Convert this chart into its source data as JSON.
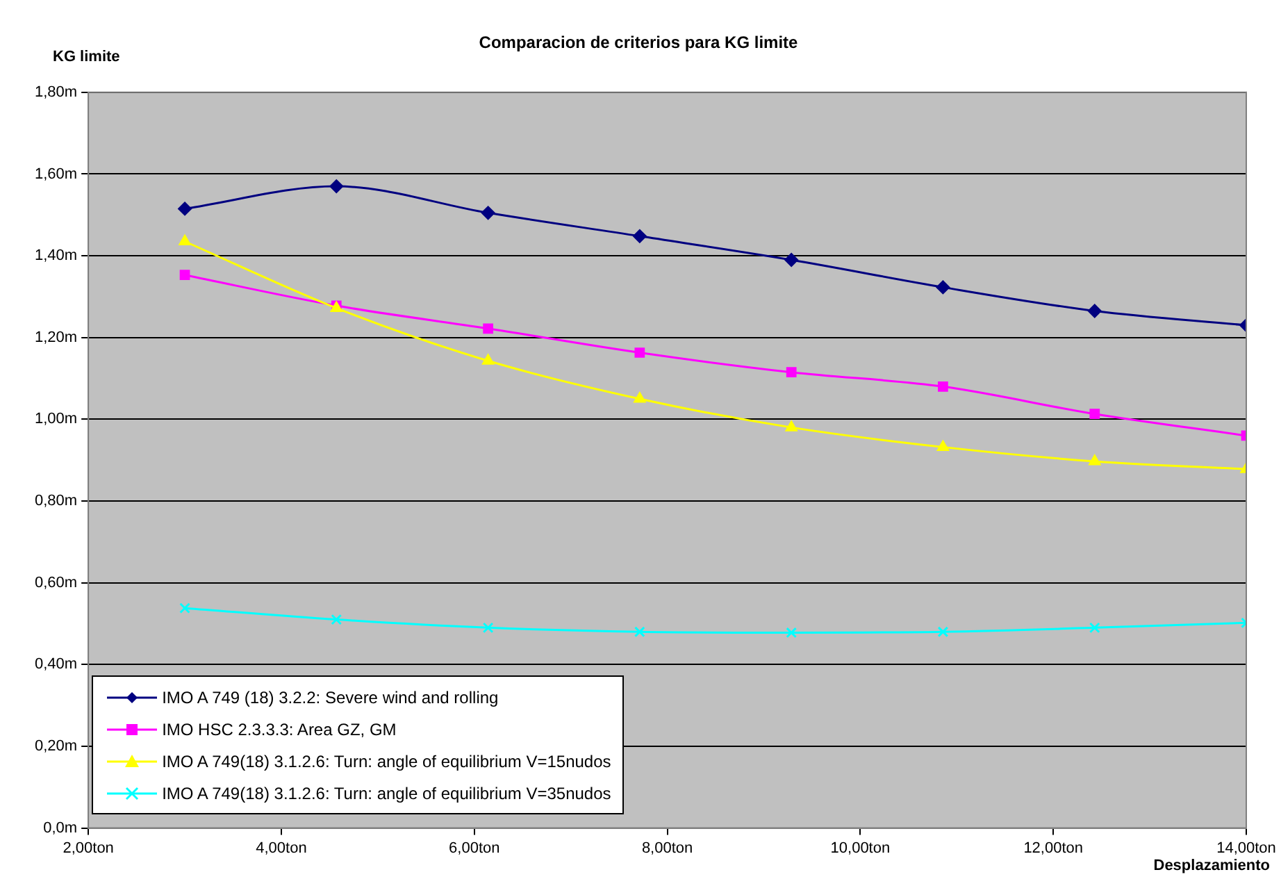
{
  "chart_data": {
    "type": "line",
    "title": "Comparacion de criterios para KG limite",
    "xlabel": "Desplazamiento",
    "ylabel": "KG limite",
    "x": [
      3.0,
      4.571,
      6.143,
      7.714,
      9.286,
      10.857,
      12.429,
      14.0
    ],
    "series": [
      {
        "name": "IMO A 749 (18) 3.2.2: Severe wind and rolling",
        "color": "#000080",
        "marker": "diamond",
        "values": [
          1.515,
          1.57,
          1.505,
          1.448,
          1.39,
          1.323,
          1.265,
          1.23
        ]
      },
      {
        "name": "IMO HSC 2.3.3.3: Area GZ, GM",
        "color": "#ff00ff",
        "marker": "square",
        "values": [
          1.353,
          1.278,
          1.222,
          1.163,
          1.115,
          1.08,
          1.013,
          0.96
        ]
      },
      {
        "name": "IMO A 749(18) 3.1.2.6: Turn: angle of equilibrium V=15nudos",
        "color": "#ffff00",
        "marker": "triangle",
        "values": [
          1.435,
          1.272,
          1.143,
          1.05,
          0.98,
          0.932,
          0.897,
          0.878
        ]
      },
      {
        "name": "IMO A 749(18) 3.1.2.6: Turn: angle of equilibrium V=35nudos",
        "color": "#00ffff",
        "marker": "cross",
        "values": [
          0.538,
          0.51,
          0.49,
          0.48,
          0.478,
          0.48,
          0.49,
          0.502
        ]
      }
    ],
    "xlim": [
      2,
      14
    ],
    "xticks": [
      {
        "value": 2,
        "label": "2,00ton"
      },
      {
        "value": 4,
        "label": "4,00ton"
      },
      {
        "value": 6,
        "label": "6,00ton"
      },
      {
        "value": 8,
        "label": "8,00ton"
      },
      {
        "value": 10,
        "label": "10,00ton"
      },
      {
        "value": 12,
        "label": "12,00ton"
      },
      {
        "value": 14,
        "label": "14,00ton"
      }
    ],
    "ylim": [
      0,
      1.8
    ],
    "yticks": [
      {
        "value": 0,
        "label": "0,0m"
      },
      {
        "value": 0.2,
        "label": "0,20m"
      },
      {
        "value": 0.4,
        "label": "0,40m"
      },
      {
        "value": 0.6,
        "label": "0,60m"
      },
      {
        "value": 0.8,
        "label": "0,80m"
      },
      {
        "value": 1.0,
        "label": "1,00m"
      },
      {
        "value": 1.2,
        "label": "1,20m"
      },
      {
        "value": 1.4,
        "label": "1,40m"
      },
      {
        "value": 1.6,
        "label": "1,60m"
      },
      {
        "value": 1.8,
        "label": "1,80m"
      }
    ],
    "grid": "y",
    "legend": "bottom left"
  }
}
